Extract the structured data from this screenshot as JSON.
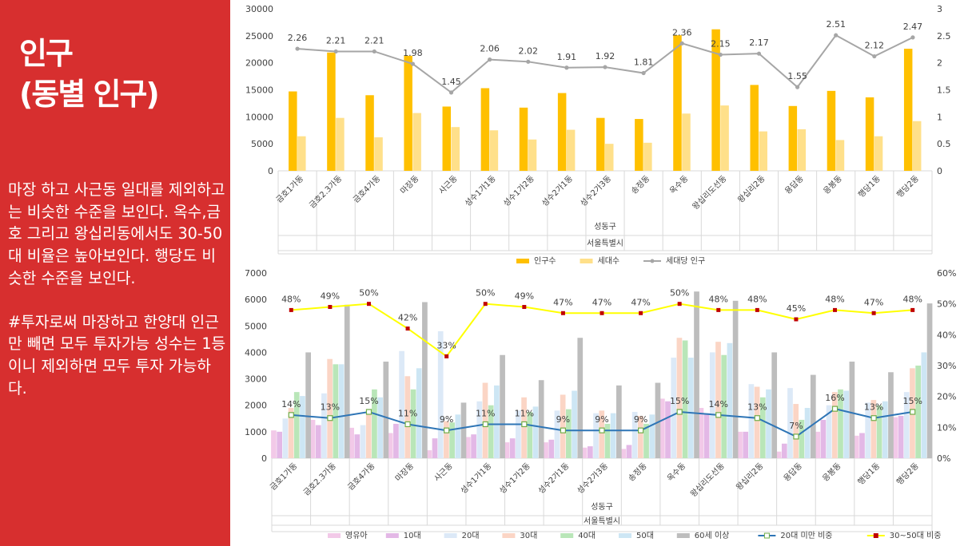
{
  "slide": {
    "title": "인구\n(동별 인구)",
    "body": "마장 하고 사근동 일대를 제외하고는 비슷한 수준을 보인다. 옥수,금호 그리고 왕십리동에서도 30-50대 비율은 높아보인다. 행당도 비슷한 수준을 보인다.\n\n#투자로써 마장하고 한양대 인근만 빼면 모두 투자가능 성수는 1등이니 제외하면 모두 투자 가능하다."
  },
  "chart_data": [
    {
      "type": "bar",
      "categories": [
        "금호1가동",
        "금호2.3가동",
        "금호4가동",
        "마장동",
        "사근동",
        "성수1가1동",
        "성수1가2동",
        "성수2가1동",
        "성수2가3동",
        "송정동",
        "옥수동",
        "왕십리도선동",
        "왕십리2동",
        "용답동",
        "응봉동",
        "행당1동",
        "행당2동"
      ],
      "group_labels": [
        "성동구",
        "서울특별시"
      ],
      "series": [
        {
          "name": "인구수",
          "kind": "bar",
          "axis": "left",
          "color": "#ffc000",
          "values": [
            14700,
            21900,
            14000,
            21300,
            11900,
            15300,
            11700,
            14400,
            9800,
            9600,
            25100,
            26200,
            15900,
            12000,
            14800,
            13600,
            22600
          ]
        },
        {
          "name": "세대수",
          "kind": "bar",
          "axis": "left",
          "color": "#ffe08a",
          "values": [
            6400,
            9800,
            6200,
            10700,
            8100,
            7500,
            5800,
            7600,
            5000,
            5200,
            10600,
            12100,
            7300,
            7700,
            5700,
            6400,
            9200
          ]
        },
        {
          "name": "세대당 인구",
          "kind": "line",
          "axis": "right",
          "color": "#a6a6a6",
          "values": [
            2.26,
            2.21,
            2.21,
            1.98,
            1.45,
            2.06,
            2.02,
            1.91,
            1.92,
            1.81,
            2.36,
            2.15,
            2.17,
            1.55,
            2.51,
            2.12,
            2.47
          ],
          "labels": [
            "2.26",
            "2.21",
            "2.21",
            "1.98",
            "1.45",
            "2.06",
            "2.02",
            "1.91",
            "1.92",
            "1.81",
            "2.36",
            "2.15",
            "2.17",
            "1.55",
            "2.51",
            "2.12",
            "2.47"
          ]
        }
      ],
      "ylim": [
        0,
        30000
      ],
      "ylim_right": [
        0,
        3
      ],
      "yticks": [
        "0",
        "5000",
        "10000",
        "15000",
        "20000",
        "25000",
        "30000"
      ],
      "yticks_right": [
        "0",
        "0.5",
        "1",
        "1.5",
        "2",
        "2.5",
        "3"
      ],
      "legend_position": "bottom"
    },
    {
      "type": "bar",
      "categories": [
        "금호1가동",
        "금호2.3가동",
        "금호4가동",
        "마장동",
        "사근동",
        "성수1가1동",
        "성수1가2동",
        "성수2가1동",
        "성수2가3동",
        "송정동",
        "옥수동",
        "왕십리도선동",
        "왕십리2동",
        "용답동",
        "응봉동",
        "행당1동",
        "행당2동"
      ],
      "group_labels": [
        "성동구",
        "서울특별시"
      ],
      "series": [
        {
          "name": "영유아",
          "kind": "bar",
          "axis": "left",
          "color": "#f2c9e8",
          "values": [
            1050,
            1450,
            1150,
            950,
            300,
            800,
            600,
            600,
            400,
            350,
            2250,
            1900,
            1000,
            250,
            1000,
            850,
            1550
          ]
        },
        {
          "name": "10대",
          "kind": "bar",
          "axis": "left",
          "color": "#e3b8e6",
          "values": [
            1000,
            1250,
            900,
            1300,
            750,
            900,
            750,
            700,
            450,
            500,
            2150,
            1700,
            1000,
            550,
            1450,
            950,
            1600
          ]
        },
        {
          "name": "20대",
          "kind": "bar",
          "axis": "left",
          "color": "#dce9f7",
          "values": [
            1500,
            2450,
            1250,
            4050,
            4800,
            2150,
            1800,
            1800,
            1700,
            1750,
            3800,
            4000,
            2800,
            2650,
            2000,
            2100,
            2500
          ]
        },
        {
          "name": "30대",
          "kind": "bar",
          "axis": "left",
          "color": "#fbd5c5",
          "values": [
            1900,
            3750,
            1800,
            3100,
            1400,
            2850,
            2300,
            2400,
            1800,
            1600,
            4550,
            4400,
            2700,
            2050,
            2500,
            2200,
            3400
          ]
        },
        {
          "name": "40대",
          "kind": "bar",
          "axis": "left",
          "color": "#b9e6b8",
          "values": [
            2500,
            3550,
            2600,
            2600,
            1350,
            2000,
            1750,
            1850,
            1300,
            1300,
            4450,
            3900,
            2300,
            1450,
            2600,
            2000,
            3500
          ]
        },
        {
          "name": "50대",
          "kind": "bar",
          "axis": "left",
          "color": "#cde6f4",
          "values": [
            2350,
            3550,
            2300,
            3400,
            1650,
            2750,
            1950,
            2550,
            1700,
            1650,
            3800,
            4350,
            2600,
            1900,
            2550,
            2150,
            4000
          ]
        },
        {
          "name": "60세 이상",
          "kind": "bar",
          "axis": "left",
          "color": "#bdbdbd",
          "values": [
            4000,
            5800,
            3650,
            5900,
            2100,
            3900,
            2950,
            4550,
            2750,
            2850,
            6300,
            5950,
            4000,
            3150,
            3650,
            3250,
            5850
          ]
        },
        {
          "name": "20대 미만 비중",
          "kind": "line",
          "axis": "right",
          "color": "#2e75b6",
          "values": [
            14,
            13,
            15,
            11,
            9,
            11,
            11,
            9,
            9,
            9,
            15,
            14,
            13,
            7,
            16,
            13,
            15
          ],
          "labels": [
            "14%",
            "13%",
            "15%",
            "11%",
            "9%",
            "11%",
            "11%",
            "9%",
            "9%",
            "9%",
            "15%",
            "14%",
            "13%",
            "7%",
            "16%",
            "13%",
            "15%"
          ]
        },
        {
          "name": "30~50대 비중",
          "kind": "line",
          "axis": "right",
          "color": "#ffff00",
          "values": [
            48,
            49,
            50,
            42,
            33,
            50,
            49,
            47,
            47,
            47,
            50,
            48,
            48,
            45,
            48,
            47,
            48
          ],
          "labels": [
            "48%",
            "49%",
            "50%",
            "42%",
            "33%",
            "50%",
            "49%",
            "47%",
            "47%",
            "47%",
            "50%",
            "48%",
            "48%",
            "45%",
            "48%",
            "47%",
            "48%"
          ]
        }
      ],
      "ylim": [
        0,
        7000
      ],
      "ylim_right": [
        0,
        60
      ],
      "yticks": [
        "0",
        "1000",
        "2000",
        "3000",
        "4000",
        "5000",
        "6000",
        "7000"
      ],
      "yticks_right": [
        "0%",
        "10%",
        "20%",
        "30%",
        "40%",
        "50%",
        "60%"
      ],
      "legend_position": "bottom"
    }
  ]
}
